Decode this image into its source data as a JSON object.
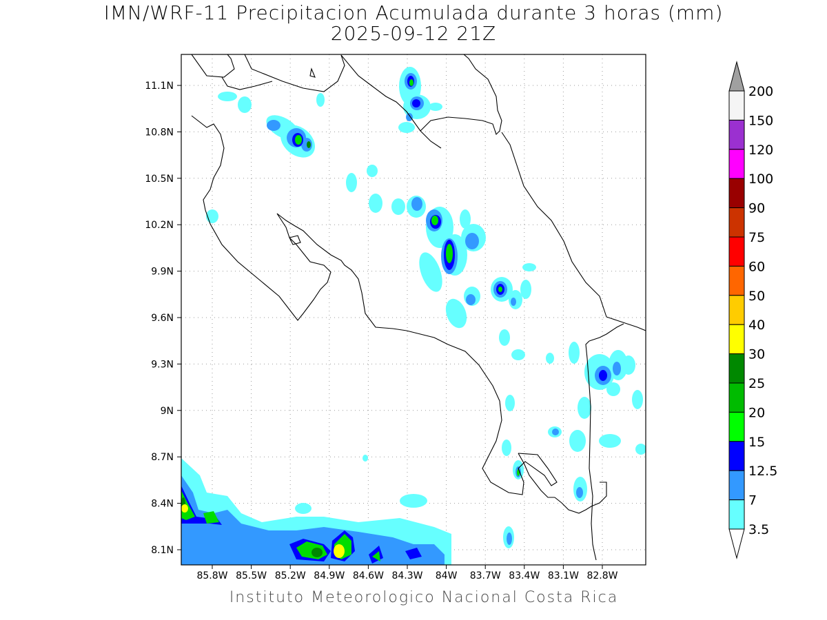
{
  "title_line1": "IMN/WRF-11 Precipitacion Acumulada durante 3 horas (mm)",
  "title_line2": "2025-09-12 21Z",
  "footer": "Instituto Meteorologico Nacional Costa Rica",
  "lat_ticks": [
    "11.1N",
    "10.8N",
    "10.5N",
    "10.2N",
    "9.9N",
    "9.6N",
    "9.3N",
    "9N",
    "8.7N",
    "8.4N",
    "8.1N"
  ],
  "lon_ticks": [
    "85.8W",
    "85.5W",
    "85.2W",
    "84.9W",
    "84.6W",
    "84.3W",
    "84W",
    "83.7W",
    "83.4W",
    "83.1W",
    "82.8W"
  ],
  "legend": {
    "levels": [
      "200",
      "150",
      "120",
      "100",
      "90",
      "75",
      "60",
      "50",
      "40",
      "30",
      "25",
      "20",
      "15",
      "12.5",
      "7",
      "3.5"
    ],
    "colors": [
      "#f5f5f5",
      "#9b30d0",
      "#ff00ff",
      "#990000",
      "#cc3300",
      "#ff0000",
      "#ff6600",
      "#ffcc00",
      "#ffff00",
      "#008800",
      "#00bb00",
      "#00ff00",
      "#0000ff",
      "#3399ff",
      "#66ffff"
    ],
    "over_color": "#a0a0a0"
  }
}
